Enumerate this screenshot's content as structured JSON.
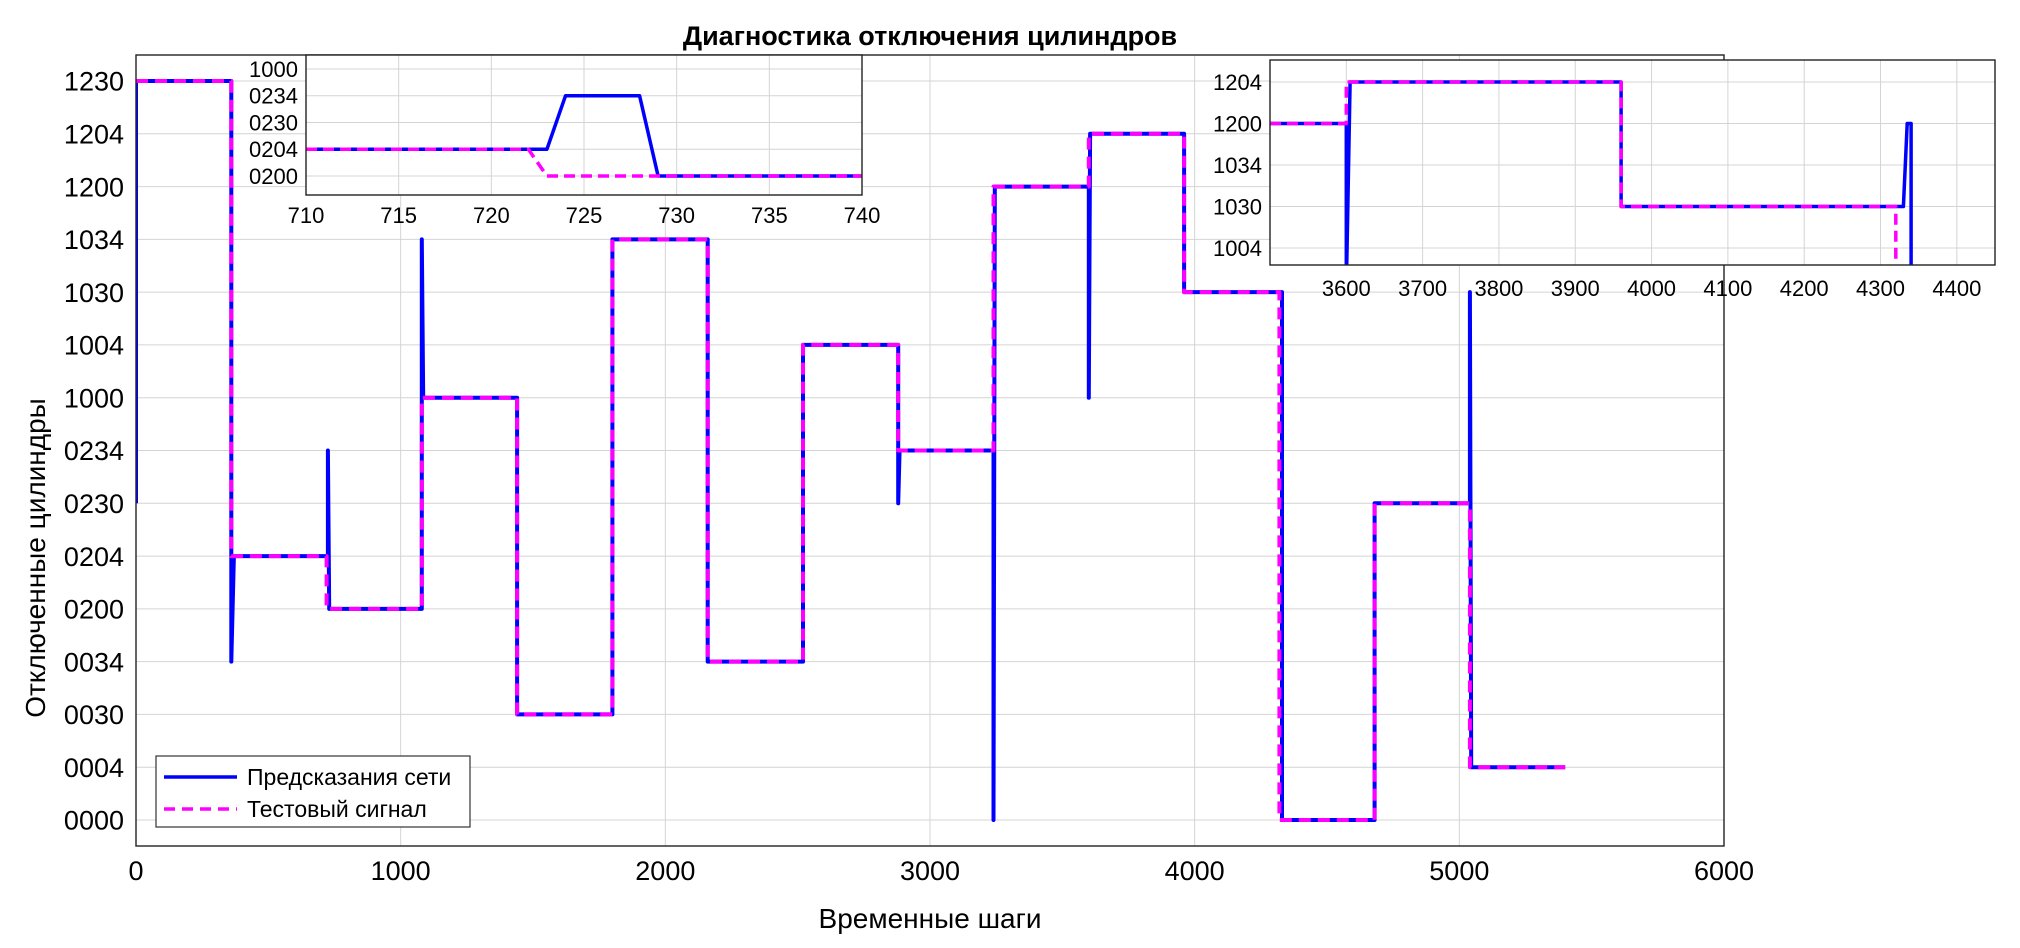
{
  "chart_data": [
    {
      "type": "line",
      "title": "Диагностика отключения цилиндров",
      "xlabel": "Временные шаги",
      "ylabel": "Отключенные цилиндры",
      "xlim": [
        0,
        6000
      ],
      "x_ticks": [
        "0",
        "1000",
        "2000",
        "3000",
        "4000",
        "5000",
        "6000"
      ],
      "y_categories": [
        "0000",
        "0004",
        "0030",
        "0034",
        "0200",
        "0204",
        "0230",
        "0234",
        "1000",
        "1004",
        "1030",
        "1034",
        "1200",
        "1204",
        "1230"
      ],
      "grid": true,
      "legend_position": "bottom-left",
      "legend": [
        "Предсказания сети",
        "Тестовый сигнал"
      ],
      "series": [
        {
          "name": "Предсказания сети",
          "color": "#0000ff",
          "style": "solid",
          "points": [
            [
              0,
              "0230"
            ],
            [
              0,
              "1230"
            ],
            [
              360,
              "1230"
            ],
            [
              360,
              "0034"
            ],
            [
              370,
              "0204"
            ],
            [
              725,
              "0204"
            ],
            [
              725,
              "0234"
            ],
            [
              730,
              "0200"
            ],
            [
              1080,
              "0200"
            ],
            [
              1080,
              "1034"
            ],
            [
              1085,
              "1000"
            ],
            [
              1440,
              "1000"
            ],
            [
              1440,
              "0030"
            ],
            [
              1800,
              "0030"
            ],
            [
              1800,
              "1034"
            ],
            [
              2160,
              "1034"
            ],
            [
              2160,
              "0034"
            ],
            [
              2520,
              "0034"
            ],
            [
              2520,
              "1004"
            ],
            [
              2880,
              "1004"
            ],
            [
              2880,
              "0230"
            ],
            [
              2885,
              "0234"
            ],
            [
              3240,
              "0234"
            ],
            [
              3240,
              "0000"
            ],
            [
              3245,
              "1200"
            ],
            [
              3600,
              "1200"
            ],
            [
              3600,
              "1000"
            ],
            [
              3605,
              "1204"
            ],
            [
              3960,
              "1204"
            ],
            [
              3960,
              "1030"
            ],
            [
              4330,
              "1030"
            ],
            [
              4330,
              "0000"
            ],
            [
              4680,
              "0000"
            ],
            [
              4680,
              "0230"
            ],
            [
              5040,
              "0230"
            ],
            [
              5040,
              "1030"
            ],
            [
              5045,
              "0004"
            ],
            [
              5400,
              "0004"
            ]
          ]
        },
        {
          "name": "Тестовый сигнал",
          "color": "#ff00ff",
          "style": "dashed",
          "points": [
            [
              0,
              "1230"
            ],
            [
              360,
              "1230"
            ],
            [
              360,
              "0204"
            ],
            [
              720,
              "0204"
            ],
            [
              720,
              "0200"
            ],
            [
              1080,
              "0200"
            ],
            [
              1080,
              "1000"
            ],
            [
              1440,
              "1000"
            ],
            [
              1440,
              "0030"
            ],
            [
              1800,
              "0030"
            ],
            [
              1800,
              "1034"
            ],
            [
              2160,
              "1034"
            ],
            [
              2160,
              "0034"
            ],
            [
              2520,
              "0034"
            ],
            [
              2520,
              "1004"
            ],
            [
              2880,
              "1004"
            ],
            [
              2880,
              "0234"
            ],
            [
              3240,
              "0234"
            ],
            [
              3240,
              "1200"
            ],
            [
              3600,
              "1200"
            ],
            [
              3600,
              "1204"
            ],
            [
              3960,
              "1204"
            ],
            [
              3960,
              "1030"
            ],
            [
              4320,
              "1030"
            ],
            [
              4320,
              "0000"
            ],
            [
              4680,
              "0000"
            ],
            [
              4680,
              "0230"
            ],
            [
              5040,
              "0230"
            ],
            [
              5040,
              "0004"
            ],
            [
              5400,
              "0004"
            ]
          ]
        }
      ]
    },
    {
      "type": "line",
      "title": "",
      "xlim": [
        710,
        740
      ],
      "x_ticks": [
        "710",
        "715",
        "720",
        "725",
        "730",
        "735",
        "740"
      ],
      "y_categories": [
        "0200",
        "0204",
        "0230",
        "0234",
        "1000"
      ],
      "grid": true,
      "series": [
        {
          "name": "Предсказания сети",
          "color": "#0000ff",
          "style": "solid",
          "points": [
            [
              710,
              "0204"
            ],
            [
              723,
              "0204"
            ],
            [
              724,
              "0234"
            ],
            [
              728,
              "0234"
            ],
            [
              729,
              "0200"
            ],
            [
              740,
              "0200"
            ]
          ]
        },
        {
          "name": "Тестовый сигнал",
          "color": "#ff00ff",
          "style": "dashed",
          "points": [
            [
              710,
              "0204"
            ],
            [
              722,
              "0204"
            ],
            [
              723,
              "0200"
            ],
            [
              740,
              "0200"
            ]
          ]
        }
      ]
    },
    {
      "type": "line",
      "title": "",
      "xlim": [
        3500,
        4450
      ],
      "x_ticks": [
        "3600",
        "3700",
        "3800",
        "3900",
        "4000",
        "4100",
        "4200",
        "4300",
        "4400"
      ],
      "y_categories": [
        "1004",
        "1030",
        "1034",
        "1200",
        "1204"
      ],
      "grid": true,
      "series": [
        {
          "name": "Предсказания сети",
          "color": "#0000ff",
          "style": "solid",
          "points": [
            [
              3500,
              "1200"
            ],
            [
              3600,
              "1200"
            ],
            [
              3600,
              "1000"
            ],
            [
              3605,
              "1204"
            ],
            [
              3960,
              "1204"
            ],
            [
              3960,
              "1030"
            ],
            [
              4330,
              "1030"
            ],
            [
              4335,
              "1200"
            ],
            [
              4340,
              "1200"
            ],
            [
              4340,
              "1000"
            ]
          ]
        },
        {
          "name": "Тестовый сигнал",
          "color": "#ff00ff",
          "style": "dashed",
          "points": [
            [
              3500,
              "1200"
            ],
            [
              3600,
              "1200"
            ],
            [
              3600,
              "1204"
            ],
            [
              3960,
              "1204"
            ],
            [
              3960,
              "1030"
            ],
            [
              4320,
              "1030"
            ],
            [
              4320,
              "1000"
            ]
          ]
        }
      ]
    }
  ]
}
